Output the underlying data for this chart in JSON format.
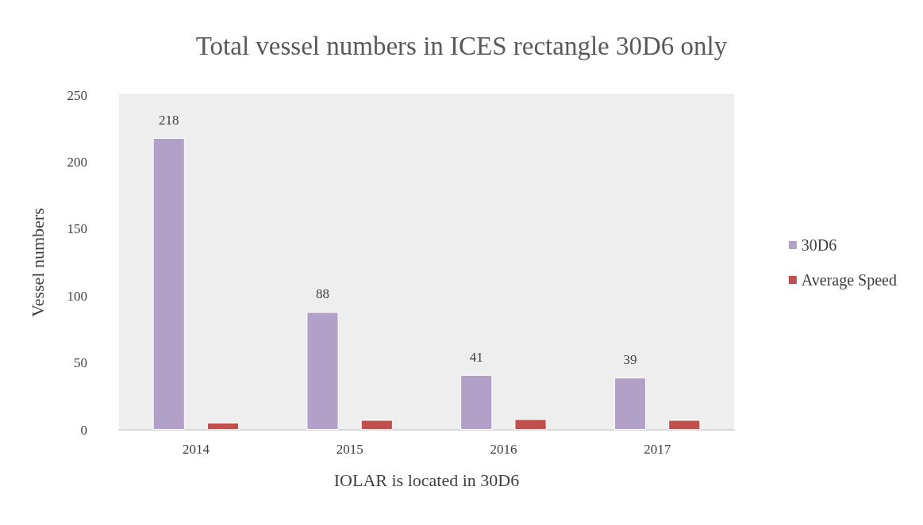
{
  "chart_data": {
    "type": "bar",
    "title": "Total vessel numbers in ICES rectangle 30D6 only",
    "xlabel": "IOLAR is located in 30D6",
    "ylabel": "Vessel numbers",
    "categories": [
      "2014",
      "2015",
      "2016",
      "2017"
    ],
    "series": [
      {
        "name": "30D6",
        "color": "#b1a0c7",
        "values": [
          218,
          88,
          41,
          39
        ],
        "value_labels": [
          "218",
          "88",
          "41",
          "39"
        ]
      },
      {
        "name": "Average Speed",
        "color": "#c0504d",
        "values": [
          5.4,
          7.4,
          8,
          7.4
        ]
      }
    ],
    "ylim": [
      0,
      250
    ],
    "yticks": [
      0,
      50,
      100,
      150,
      200,
      250
    ],
    "grid": "y",
    "legend": "right"
  }
}
